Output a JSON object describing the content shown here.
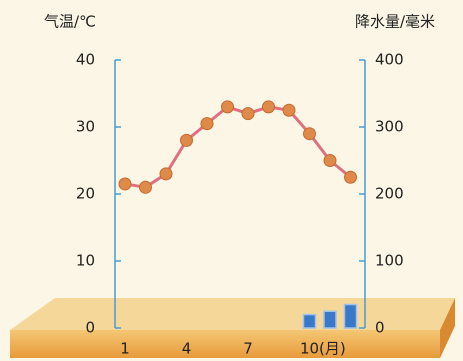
{
  "chart_data": {
    "type": "climate",
    "y_label": "气温/℃",
    "y2_label": "降水量/毫米",
    "x_label": "(月)",
    "categories": [
      "1",
      null,
      null,
      "4",
      null,
      null,
      "7",
      null,
      null,
      "10",
      null,
      null
    ],
    "series": [
      {
        "name": "气温",
        "color": "#e07080",
        "values": [
          21.5,
          21,
          23,
          28,
          30.5,
          33,
          32,
          33,
          32.5,
          29,
          25,
          22.5
        ]
      },
      {
        "name": "降水量",
        "color": "#3a78c8",
        "axis": "y2",
        "values": [
          0,
          0,
          0,
          0,
          0,
          0,
          0,
          0,
          0,
          20,
          25,
          35
        ]
      }
    ],
    "ylim": [
      0,
      40
    ],
    "yticks": [
      0,
      10,
      20,
      30,
      40
    ],
    "y2lim": [
      0,
      400
    ],
    "y2ticks": [
      0,
      100,
      200,
      300,
      400
    ]
  }
}
